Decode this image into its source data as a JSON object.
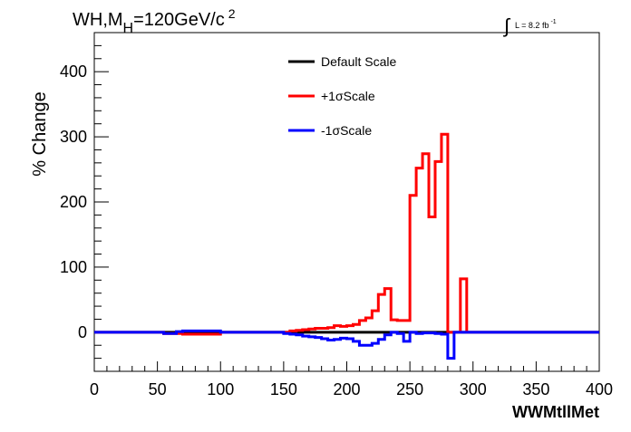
{
  "header": {
    "process_prefix": "WH,M",
    "process_subscript": "H",
    "process_value": "=120GeV/c",
    "process_superscript": "2",
    "lumi_integral": "∫",
    "lumi_text": "L = 8.2 fb",
    "lumi_superscript": "-1"
  },
  "chart_data": {
    "type": "line",
    "title": "",
    "xlabel": "WWMtllMet",
    "ylabel": "% Change",
    "xlim": [
      0,
      400
    ],
    "ylim": [
      -60,
      460
    ],
    "x_ticks": [
      0,
      50,
      100,
      150,
      200,
      250,
      300,
      350,
      400
    ],
    "y_ticks": [
      0,
      100,
      200,
      300,
      400
    ],
    "x_tick_labels": [
      "0",
      "50",
      "100",
      "150",
      "200",
      "250",
      "300",
      "350",
      "400"
    ],
    "y_tick_labels": [
      "0",
      "100",
      "200",
      "300",
      "400"
    ],
    "grid": false,
    "legend_position": "top-center",
    "bin_edges": [
      0,
      50,
      55,
      65,
      70,
      75,
      100,
      105,
      110,
      145,
      150,
      155,
      160,
      165,
      170,
      175,
      180,
      185,
      190,
      195,
      200,
      205,
      210,
      215,
      220,
      225,
      230,
      235,
      240,
      245,
      250,
      255,
      260,
      265,
      270,
      275,
      280,
      285,
      290,
      295,
      300,
      305,
      310,
      315,
      320,
      325,
      330,
      400
    ],
    "series": [
      {
        "name": "Default Scale",
        "color": "#000000",
        "values": [
          0,
          0,
          0,
          0,
          0,
          0,
          0,
          0,
          0,
          0,
          0,
          0,
          0,
          0,
          0,
          0,
          0,
          0,
          0,
          0,
          0,
          0,
          0,
          0,
          0,
          0,
          0,
          0,
          0,
          0,
          0,
          0,
          0,
          0,
          0,
          0,
          0,
          0,
          0,
          0,
          0,
          0,
          0,
          0,
          0,
          0,
          0
        ]
      },
      {
        "name": "+1σScale",
        "color": "#ff0000",
        "values": [
          0,
          0,
          -2,
          -2,
          -3,
          -3,
          0,
          0,
          0,
          0,
          0,
          2,
          3,
          4,
          5,
          6,
          6,
          7,
          10,
          9,
          10,
          12,
          18,
          22,
          33,
          58,
          67,
          19,
          18,
          18,
          210,
          252,
          274,
          177,
          262,
          304,
          0,
          0,
          82,
          0,
          0,
          0,
          0,
          0,
          0,
          0,
          0
        ]
      },
      {
        "name": "-1σScale",
        "color": "#0000ff",
        "values": [
          0,
          0,
          -2,
          1,
          2,
          2,
          0,
          0,
          0,
          0,
          -2,
          -3,
          -4,
          -6,
          -7,
          -8,
          -10,
          -12,
          -11,
          -9,
          -10,
          -14,
          -20,
          -20,
          -17,
          -11,
          -4,
          0,
          -2,
          -14,
          0,
          -2,
          -1,
          -1,
          -2,
          -3,
          -40,
          0,
          0,
          0,
          0,
          0,
          0,
          0,
          0,
          0,
          0
        ]
      }
    ]
  }
}
